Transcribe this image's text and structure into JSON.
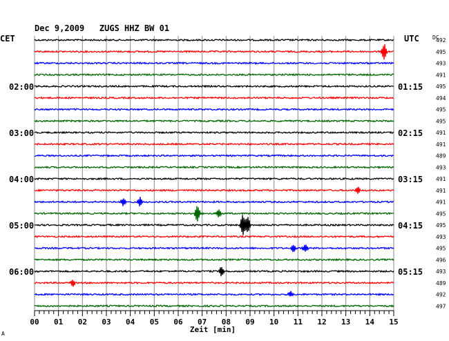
{
  "header": {
    "title": "Dec 9,2009   ZUGS HHZ BW 01",
    "left_label": "CET",
    "right_label": "UTC",
    "dc_label": "DC",
    "corner_mark": "A"
  },
  "chart_data": {
    "type": "line",
    "title": "Dec 9,2009   ZUGS HHZ BW 01",
    "xlabel": "Zeit [min]",
    "x_ticks": [
      "00",
      "01",
      "02",
      "03",
      "04",
      "05",
      "06",
      "07",
      "08",
      "09",
      "10",
      "11",
      "12",
      "13",
      "14",
      "15"
    ],
    "xlim": [
      0,
      15
    ],
    "trace_colors": [
      "#000000",
      "#ff0000",
      "#0000ff",
      "#006600"
    ],
    "grid": "vertical",
    "rows": 24,
    "hour_labels_left": [
      {
        "row": 4,
        "label": "02:00"
      },
      {
        "row": 8,
        "label": "03:00"
      },
      {
        "row": 12,
        "label": "04:00"
      },
      {
        "row": 16,
        "label": "05:00"
      },
      {
        "row": 20,
        "label": "06:00"
      }
    ],
    "hour_labels_right": [
      {
        "row": 4,
        "label": "01:15"
      },
      {
        "row": 8,
        "label": "02:15"
      },
      {
        "row": 12,
        "label": "03:15"
      },
      {
        "row": 16,
        "label": "04:15"
      },
      {
        "row": 20,
        "label": "05:15"
      }
    ],
    "dc_values": [
      "492",
      "495",
      "493",
      "491",
      "495",
      "494",
      "495",
      "495",
      "491",
      "491",
      "489",
      "493",
      "491",
      "491",
      "491",
      "495",
      "495",
      "493",
      "495",
      "496",
      "493",
      "489",
      "492",
      "497"
    ],
    "events": [
      {
        "row": 1,
        "minute": 14.6,
        "amplitude": 12
      },
      {
        "row": 13,
        "minute": 13.5,
        "amplitude": 6
      },
      {
        "row": 14,
        "minute": 3.7,
        "amplitude": 6
      },
      {
        "row": 14,
        "minute": 4.4,
        "amplitude": 7
      },
      {
        "row": 15,
        "minute": 6.8,
        "amplitude": 12
      },
      {
        "row": 15,
        "minute": 7.7,
        "amplitude": 6
      },
      {
        "row": 16,
        "minute": 8.7,
        "amplitude": 16
      },
      {
        "row": 16,
        "minute": 8.9,
        "amplitude": 12
      },
      {
        "row": 18,
        "minute": 10.8,
        "amplitude": 6
      },
      {
        "row": 18,
        "minute": 11.3,
        "amplitude": 6
      },
      {
        "row": 20,
        "minute": 7.8,
        "amplitude": 7
      },
      {
        "row": 21,
        "minute": 1.6,
        "amplitude": 5
      },
      {
        "row": 22,
        "minute": 10.7,
        "amplitude": 4
      }
    ]
  }
}
